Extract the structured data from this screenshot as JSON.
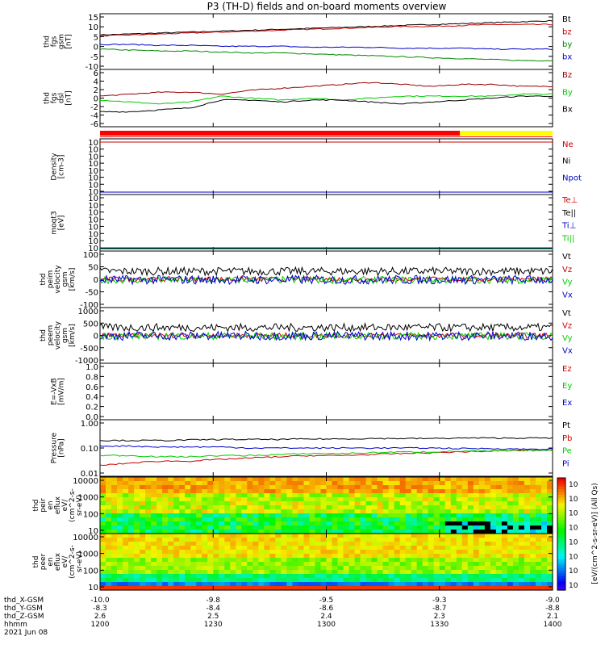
{
  "title": "P3 (TH-D) fields and on-board moments overview",
  "chart_data": {
    "type": "line",
    "time_axis": {
      "ticks": [
        "1200",
        "1230",
        "1300",
        "1330",
        "1400"
      ],
      "date": "2021 Jun 08"
    },
    "ephemeris": {
      "labels": [
        "thd_X-GSM",
        "thd_Y-GSM",
        "thd_Z-GSM",
        "hhmm"
      ],
      "rows": [
        [
          "-10.0",
          "-9.8",
          "-9.5",
          "-9.3",
          "-9.0"
        ],
        [
          "-8.3",
          "-8.4",
          "-8.6",
          "-8.7",
          "-8.8"
        ],
        [
          "2.6",
          "2.5",
          "2.4",
          "2.3",
          "2.1"
        ]
      ]
    },
    "panels": [
      {
        "id": "fgs",
        "ylabel": [
          "thd",
          "fgs",
          "gsm",
          "[nT]"
        ],
        "yticks": [
          "15",
          "10",
          "5",
          "0",
          "-5",
          "-10"
        ],
        "ylim": [
          -10,
          16
        ],
        "series": [
          {
            "name": "Bt",
            "color": "#000000",
            "values": [
              6.5,
              7,
              7.5,
              8,
              8.5,
              9,
              9.5,
              10,
              10.5,
              11,
              11.5,
              12,
              12.5,
              13,
              13.5,
              14
            ]
          },
          {
            "name": "bz",
            "color": "#cc0000",
            "values": [
              6,
              6.5,
              7,
              7.5,
              8,
              8.5,
              9,
              9.5,
              10,
              10.5,
              11,
              11,
              11.5,
              12,
              12,
              12
            ]
          },
          {
            "name": "by",
            "color": "#008800",
            "values": [
              -1,
              -1.5,
              -2,
              -2,
              -2.5,
              -3,
              -3,
              -3.5,
              -4,
              -4.5,
              -5,
              -5.5,
              -6,
              -6.5,
              -7,
              -7
            ]
          },
          {
            "name": "bx",
            "color": "#0000cc",
            "values": [
              1.5,
              1.5,
              1,
              1,
              0.5,
              0.5,
              0.5,
              0,
              0,
              0,
              -0.5,
              -0.5,
              -0.5,
              -1,
              -1,
              -1
            ]
          }
        ]
      },
      {
        "id": "fgs_dsl",
        "ylabel": [
          "thd",
          "fgs",
          "dsl",
          "[nT]"
        ],
        "yticks": [
          "6",
          "4",
          "2",
          "0",
          "-2",
          "-4",
          "-6"
        ],
        "ylim": [
          -7,
          6
        ],
        "series": [
          {
            "name": "Bz",
            "color": "#990000",
            "values": [
              0,
              0.5,
              1,
              1,
              0.5,
              1.5,
              2,
              2.5,
              3,
              3.5,
              3,
              2.5,
              3,
              3,
              2.5,
              2.5
            ]
          },
          {
            "name": "By",
            "color": "#00cc00",
            "values": [
              -1,
              -1.5,
              -2,
              -1.5,
              0,
              -0.5,
              -1,
              -0.5,
              -1,
              -0.5,
              0,
              0,
              0,
              0,
              0.5,
              0.5
            ]
          },
          {
            "name": "Bx",
            "color": "#000000",
            "values": [
              -4,
              -4,
              -3.5,
              -3,
              -1,
              -1,
              -1.5,
              -1,
              -1,
              -1.5,
              -2,
              -1.5,
              -1,
              -0.5,
              0,
              0
            ]
          }
        ]
      },
      {
        "id": "density",
        "ylabel": [
          "Density",
          "[cm-3]"
        ],
        "yticks": [
          "10",
          "10",
          "10",
          "10",
          "10",
          "10",
          "10",
          "10"
        ],
        "ylim": [
          -14,
          2
        ],
        "series": [
          {
            "name": "Ne",
            "color": "#cc0000",
            "values": []
          },
          {
            "name": "Ni",
            "color": "#000000",
            "values": []
          },
          {
            "name": "Npot",
            "color": "#0000cc",
            "values": []
          }
        ]
      },
      {
        "id": "temp",
        "ylabel": [
          "moqt3",
          "[eV]"
        ],
        "yticks": [
          "10",
          "10",
          "10",
          "10",
          "10",
          "10",
          "10",
          "10"
        ],
        "ylim": [
          -10,
          4
        ],
        "series": [
          {
            "name": "Te⊥",
            "color": "#cc0000",
            "values": []
          },
          {
            "name": "Te||",
            "color": "#000000",
            "values": []
          },
          {
            "name": "Ti⊥",
            "color": "#0000cc",
            "values": []
          },
          {
            "name": "Ti||",
            "color": "#00cc00",
            "values": []
          }
        ]
      },
      {
        "id": "peim",
        "ylabel": [
          "thd",
          "peim",
          "velocity",
          "gsm",
          "[km/s]"
        ],
        "yticks": [
          "100",
          "50",
          "0",
          "-50",
          "-100"
        ],
        "ylim": [
          -100,
          100
        ],
        "series": [
          {
            "name": "Vt",
            "color": "#000000",
            "values": []
          },
          {
            "name": "Vz",
            "color": "#cc0000",
            "values": []
          },
          {
            "name": "Vy",
            "color": "#00cc00",
            "values": []
          },
          {
            "name": "Vx",
            "color": "#0000cc",
            "values": []
          }
        ]
      },
      {
        "id": "peem",
        "ylabel": [
          "thd",
          "peem",
          "velocity",
          "gsm",
          "[km/s]"
        ],
        "yticks": [
          "1000",
          "500",
          "0",
          "-500",
          "-1000"
        ],
        "ylim": [
          -1000,
          1000
        ],
        "series": [
          {
            "name": "Vt",
            "color": "#000000",
            "values": []
          },
          {
            "name": "Vz",
            "color": "#cc0000",
            "values": []
          },
          {
            "name": "Vy",
            "color": "#00cc00",
            "values": []
          },
          {
            "name": "Vx",
            "color": "#0000cc",
            "values": []
          }
        ]
      },
      {
        "id": "efield",
        "ylabel": [
          "E=-VxB",
          "[mV/m]"
        ],
        "yticks": [
          "1.0",
          "0.8",
          "0.6",
          "0.4",
          "0.2",
          "0.0"
        ],
        "ylim": [
          0,
          1
        ],
        "series": [
          {
            "name": "Ez",
            "color": "#cc0000",
            "values": []
          },
          {
            "name": "Ey",
            "color": "#00cc00",
            "values": []
          },
          {
            "name": "Ex",
            "color": "#0000cc",
            "values": []
          }
        ]
      },
      {
        "id": "pressure",
        "ylabel": [
          "Pressure",
          "[nPa]"
        ],
        "yticks": [
          "1.00",
          "0.10",
          "0.01"
        ],
        "ylim": [
          0.01,
          1.0
        ],
        "series": [
          {
            "name": "Pt",
            "color": "#000000",
            "values": [
              0.2,
              0.2,
              0.2,
              0.21,
              0.22,
              0.22,
              0.22,
              0.23,
              0.23,
              0.24,
              0.24,
              0.24,
              0.25,
              0.25,
              0.25,
              0.25
            ]
          },
          {
            "name": "Pb",
            "color": "#cc0000",
            "values": [
              0.02,
              0.025,
              0.03,
              0.03,
              0.035,
              0.04,
              0.045,
              0.05,
              0.05,
              0.055,
              0.06,
              0.065,
              0.07,
              0.075,
              0.08,
              0.085
            ]
          },
          {
            "name": "Pe",
            "color": "#00cc00",
            "values": [
              0.05,
              0.05,
              0.045,
              0.045,
              0.05,
              0.05,
              0.055,
              0.06,
              0.06,
              0.065,
              0.07,
              0.07,
              0.075,
              0.075,
              0.08,
              0.08
            ]
          },
          {
            "name": "Pi",
            "color": "#0000cc",
            "values": [
              0.12,
              0.12,
              0.11,
              0.11,
              0.11,
              0.1,
              0.1,
              0.1,
              0.1,
              0.1,
              0.1,
              0.1,
              0.095,
              0.095,
              0.09,
              0.09
            ]
          }
        ]
      },
      {
        "id": "peir",
        "ylabel": [
          "thd",
          "peir",
          "en",
          "eflux",
          "eV/",
          "(cm^2-s-",
          "sr-eV)"
        ],
        "yticks": [
          "10000",
          "1000",
          "100",
          "10"
        ],
        "type": "heatmap"
      },
      {
        "id": "peer",
        "ylabel": [
          "thd",
          "peer",
          "en",
          "eflux",
          "eV/",
          "(cm^2-s-",
          "sr-eV)"
        ],
        "yticks": [
          "10000",
          "1000",
          "100",
          "10"
        ],
        "type": "heatmap"
      }
    ],
    "colorbar": {
      "label": "[eV/(cm^2-s-sr-eV)] (All Qs)",
      "ticks": [
        "10",
        "10",
        "10",
        "10",
        "10",
        "10",
        "10",
        "10"
      ]
    }
  }
}
